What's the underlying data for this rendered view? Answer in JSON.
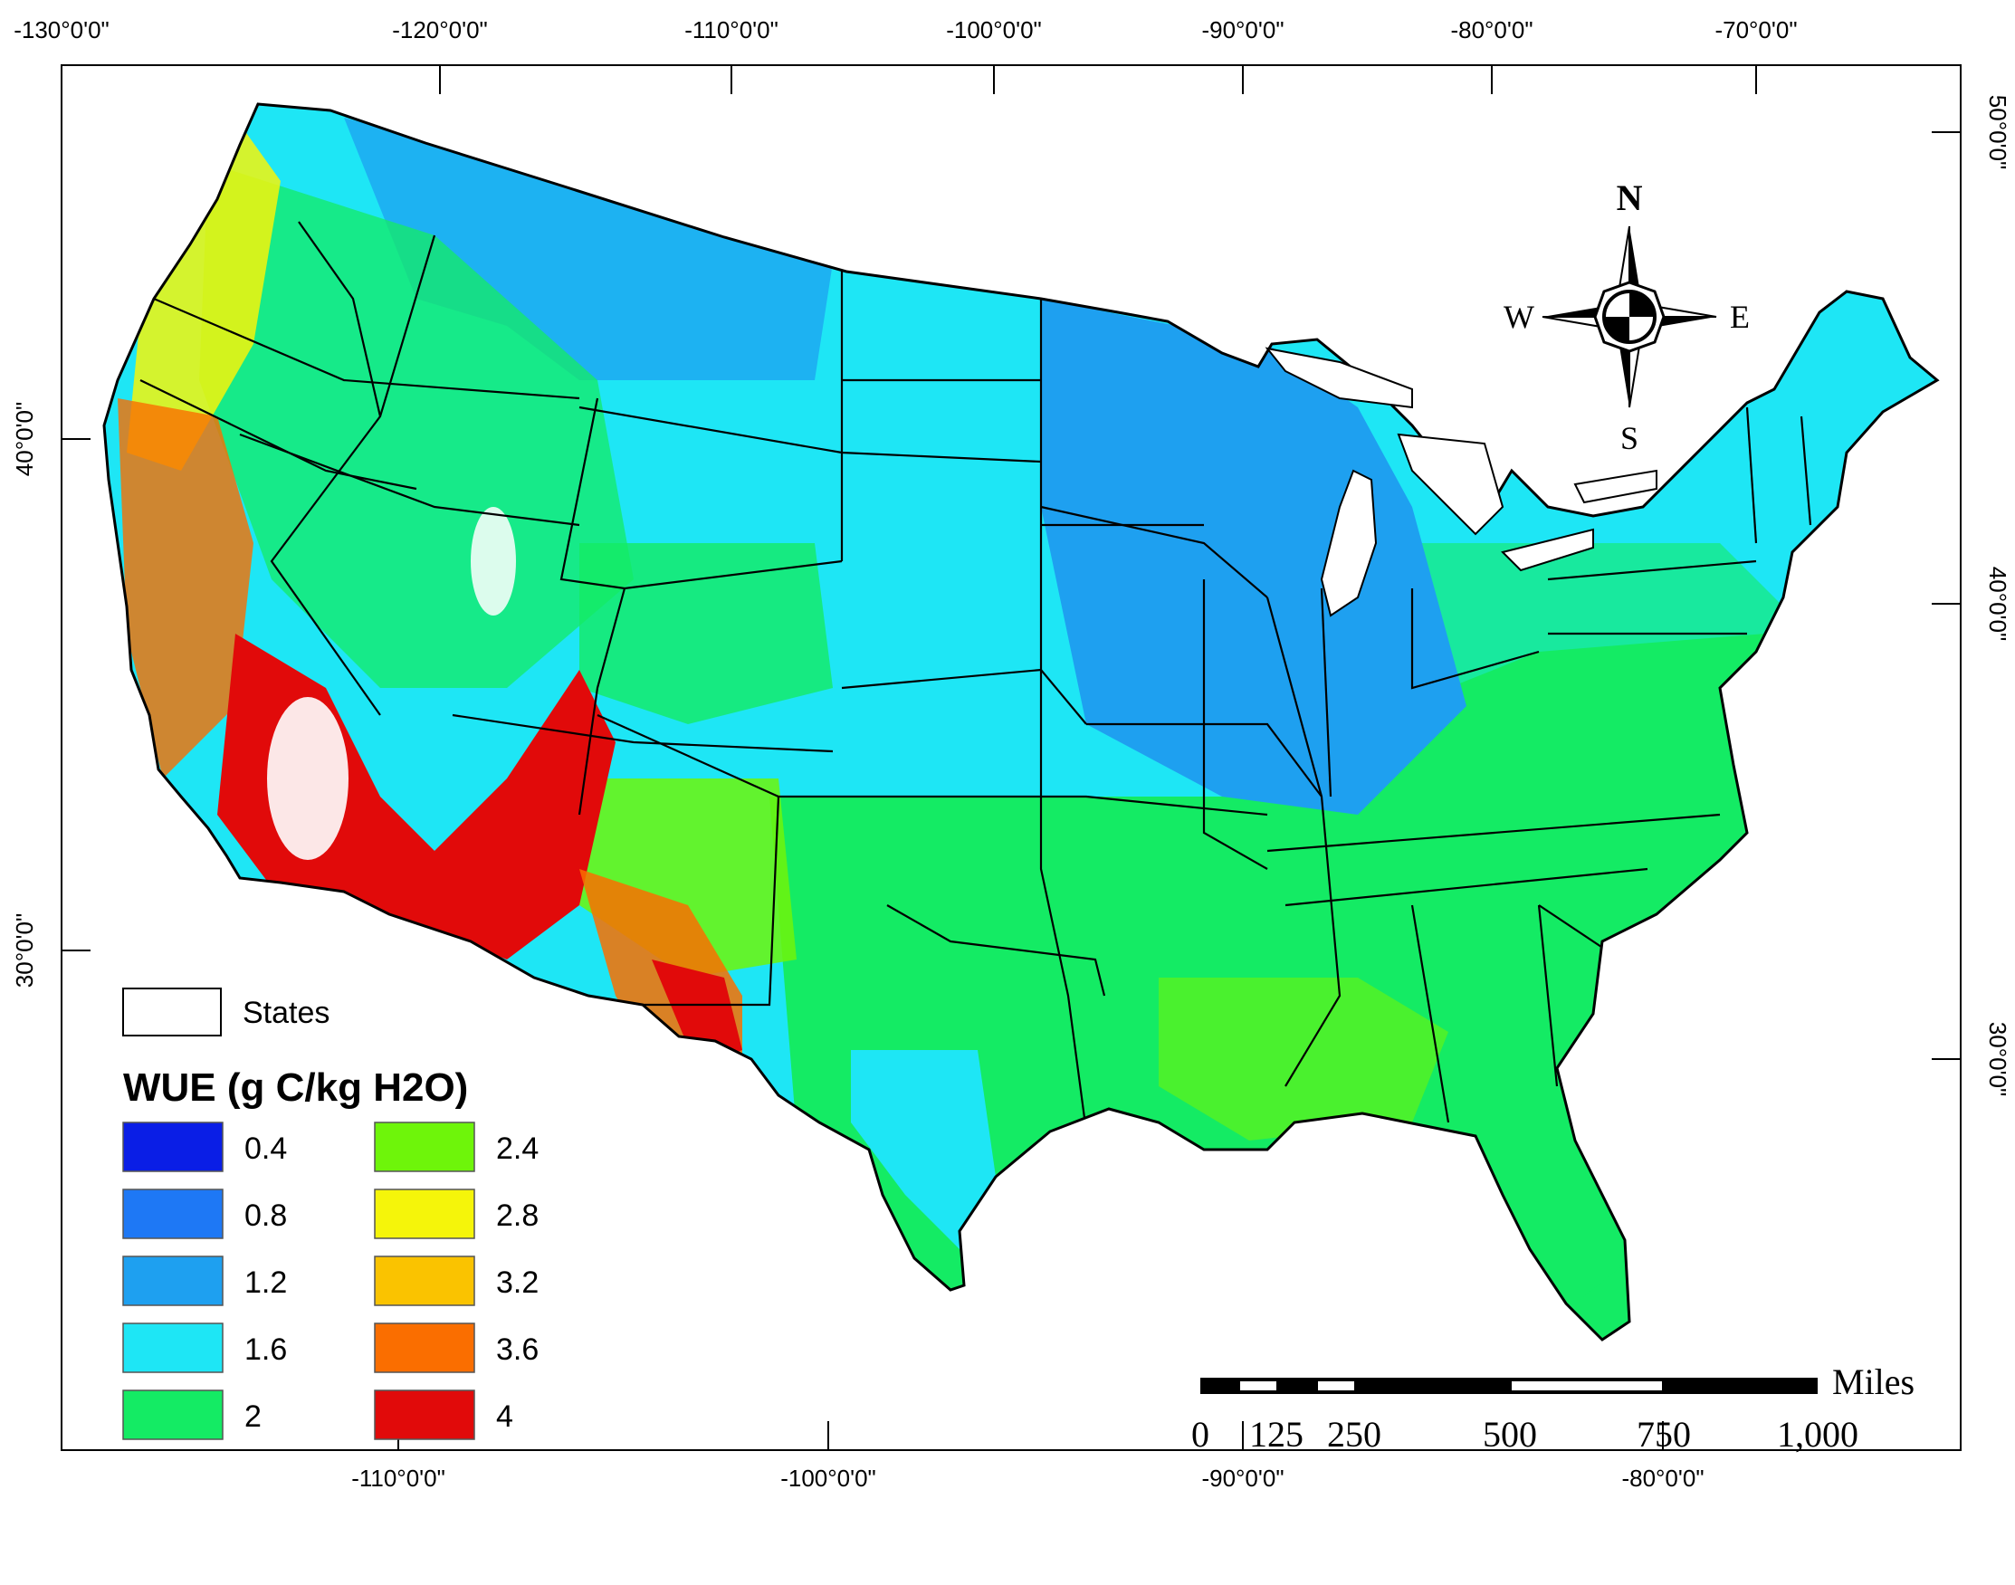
{
  "map": {
    "top_longitudes": [
      "-130°0'0\"",
      "-120°0'0\"",
      "-110°0'0\"",
      "-100°0'0\"",
      "-90°0'0\"",
      "-80°0'0\"",
      "-70°0'0\""
    ],
    "bottom_longitudes": [
      "-110°0'0\"",
      "-100°0'0\"",
      "-90°0'0\"",
      "-80°0'0\""
    ],
    "left_latitudes": [
      "40°0'0\"",
      "30°0'0\""
    ],
    "right_latitudes": [
      "50°0'0\"",
      "40°0'0\"",
      "30°0'0\""
    ]
  },
  "legend": {
    "states_label": "States",
    "title": "WUE (g C/kg H2O)",
    "classes": [
      {
        "label": "0.4",
        "color": "#0a1ee6"
      },
      {
        "label": "0.8",
        "color": "#1e78f5"
      },
      {
        "label": "1.2",
        "color": "#1ea0f0"
      },
      {
        "label": "1.6",
        "color": "#1ee6f5"
      },
      {
        "label": "2",
        "color": "#14eb64"
      },
      {
        "label": "2.4",
        "color": "#6ef50a"
      },
      {
        "label": "2.8",
        "color": "#f5f50a"
      },
      {
        "label": "3.2",
        "color": "#fac300"
      },
      {
        "label": "3.6",
        "color": "#fa6e00"
      },
      {
        "label": "4",
        "color": "#e10a0a"
      }
    ]
  },
  "compass": {
    "n": "N",
    "s": "S",
    "e": "E",
    "w": "W"
  },
  "scalebar": {
    "unit": "Miles",
    "ticks": [
      "0",
      "125",
      "250",
      "500",
      "750",
      "1,000"
    ]
  }
}
